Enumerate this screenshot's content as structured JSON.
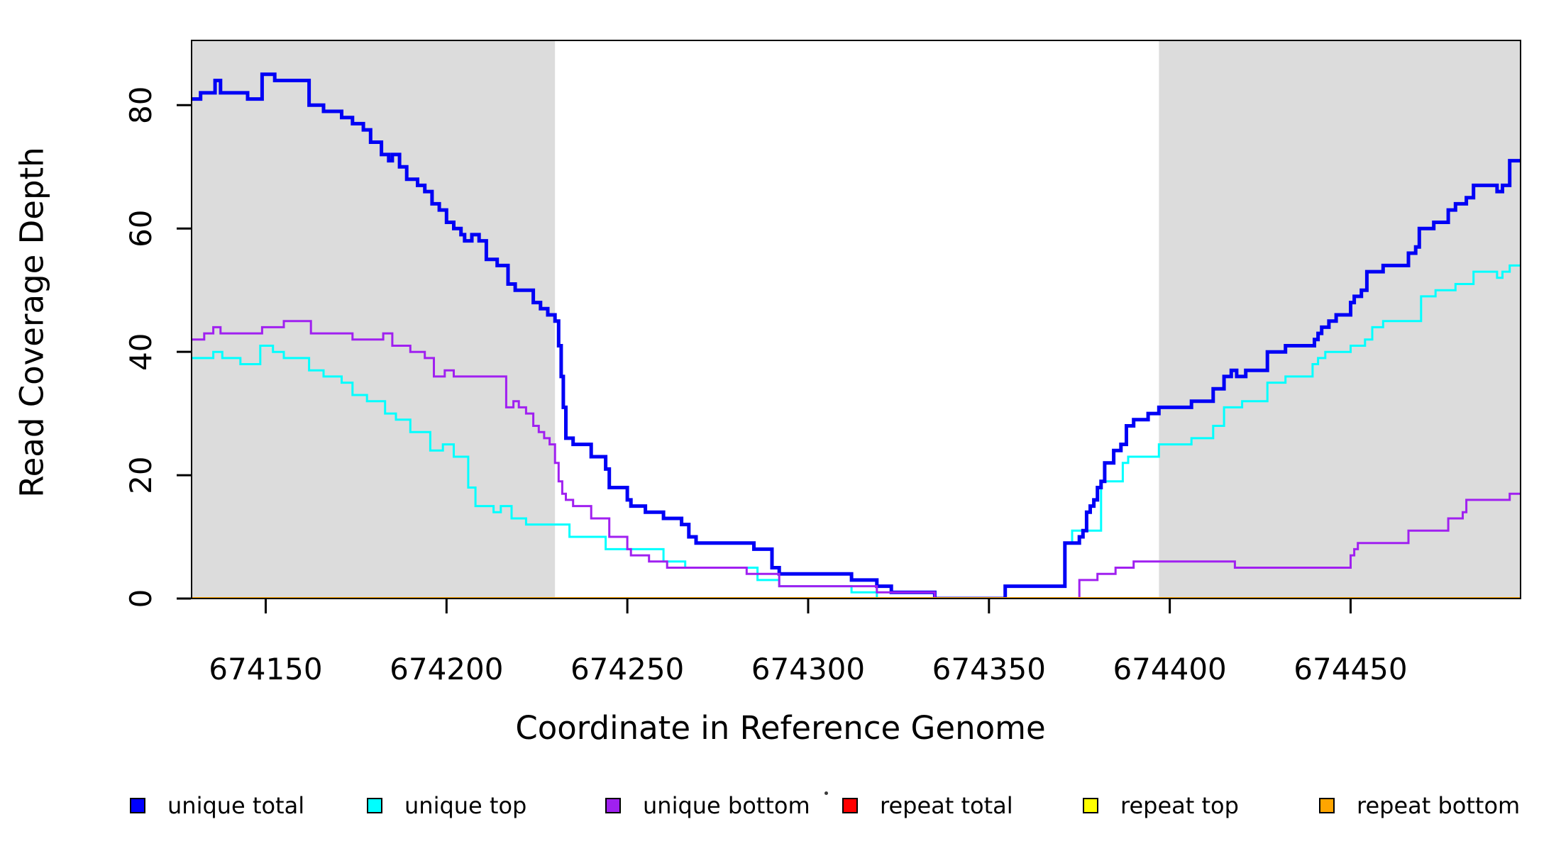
{
  "figure": {
    "background": "#FFFFFF",
    "shade_color": "#DCDCDC",
    "box_color": "#000000",
    "tick_color": "#000000",
    "artifact_dot": "·"
  },
  "chart_data": {
    "type": "line",
    "subtype": "step-after",
    "title": "",
    "xlabel": "Coordinate in Reference Genome",
    "ylabel": "Read Coverage Depth",
    "xlim": [
      674129.5,
      674497
    ],
    "ylim": [
      0,
      90.5
    ],
    "x_ticks": [
      674150,
      674200,
      674250,
      674300,
      674350,
      674400,
      674450
    ],
    "y_ticks": [
      0,
      20,
      40,
      60,
      80
    ],
    "grid": false,
    "legend_position": "bottom",
    "shaded_regions": [
      [
        674129.5,
        674230
      ],
      [
        674397,
        674497
      ]
    ],
    "series": [
      {
        "name": "repeat total",
        "color": "#FF0000",
        "width": 3,
        "points": [
          [
            674129.5,
            0
          ]
        ]
      },
      {
        "name": "repeat top",
        "color": "#FFFF00",
        "width": 3,
        "points": [
          [
            674129.5,
            0
          ]
        ]
      },
      {
        "name": "unique top",
        "color": "#00FFFF",
        "width": 3,
        "points": [
          [
            674129.5,
            39
          ],
          [
            674135.5,
            40
          ],
          [
            674138,
            39
          ],
          [
            674143,
            38
          ],
          [
            674148.5,
            41
          ],
          [
            674152,
            40
          ],
          [
            674155,
            39
          ],
          [
            674162,
            37
          ],
          [
            674166,
            36
          ],
          [
            674171,
            35
          ],
          [
            674174,
            33
          ],
          [
            674178,
            32
          ],
          [
            674183,
            30
          ],
          [
            674186,
            29
          ],
          [
            674190,
            27
          ],
          [
            674195.5,
            24
          ],
          [
            674199,
            25
          ],
          [
            674202,
            23
          ],
          [
            674206,
            18
          ],
          [
            674208,
            15
          ],
          [
            674213,
            14
          ],
          [
            674215,
            15
          ],
          [
            674218,
            13
          ],
          [
            674222,
            12
          ],
          [
            674234,
            10
          ],
          [
            674244,
            8
          ],
          [
            674260,
            6
          ],
          [
            674266,
            5
          ],
          [
            674286,
            3
          ],
          [
            674292,
            2
          ],
          [
            674312,
            1
          ],
          [
            674319,
            0
          ],
          [
            674354.5,
            2
          ],
          [
            674371,
            9
          ],
          [
            674373,
            11
          ],
          [
            674381,
            19
          ],
          [
            674387,
            22
          ],
          [
            674388.5,
            23
          ],
          [
            674397,
            25
          ],
          [
            674406,
            26
          ],
          [
            674412,
            28
          ],
          [
            674415,
            31
          ],
          [
            674420,
            32
          ],
          [
            674427,
            35
          ],
          [
            674432,
            36
          ],
          [
            674439.5,
            38
          ],
          [
            674441,
            39
          ],
          [
            674443,
            40
          ],
          [
            674450,
            41
          ],
          [
            674454,
            42
          ],
          [
            674456,
            44
          ],
          [
            674459,
            45
          ],
          [
            674469.5,
            49
          ],
          [
            674473.5,
            50
          ],
          [
            674479,
            51
          ],
          [
            674484,
            53
          ],
          [
            674490.5,
            52
          ],
          [
            674492,
            53
          ],
          [
            674494,
            54
          ]
        ]
      },
      {
        "name": "unique total",
        "color": "#0000F5",
        "width": 5,
        "points": [
          [
            674129.5,
            81
          ],
          [
            674132,
            82
          ],
          [
            674136,
            84
          ],
          [
            674137.5,
            82
          ],
          [
            674145,
            81
          ],
          [
            674149,
            85
          ],
          [
            674152.5,
            84
          ],
          [
            674162,
            80
          ],
          [
            674166,
            79
          ],
          [
            674171,
            78
          ],
          [
            674174,
            77
          ],
          [
            674177,
            76
          ],
          [
            674179,
            74
          ],
          [
            674182,
            72
          ],
          [
            674184,
            71
          ],
          [
            674185,
            72
          ],
          [
            674187,
            70
          ],
          [
            674189,
            68
          ],
          [
            674192,
            67
          ],
          [
            674194,
            66
          ],
          [
            674196,
            64
          ],
          [
            674198,
            63
          ],
          [
            674200,
            61
          ],
          [
            674202,
            60
          ],
          [
            674204,
            59
          ],
          [
            674205,
            58
          ],
          [
            674207,
            59
          ],
          [
            674209,
            58
          ],
          [
            674211,
            55
          ],
          [
            674214,
            54
          ],
          [
            674217,
            51
          ],
          [
            674219,
            50
          ],
          [
            674224,
            48
          ],
          [
            674226,
            47
          ],
          [
            674228,
            46
          ],
          [
            674230,
            45
          ],
          [
            674231,
            41
          ],
          [
            674231.7,
            36
          ],
          [
            674232.3,
            31
          ],
          [
            674233,
            26
          ],
          [
            674235,
            25
          ],
          [
            674240,
            23
          ],
          [
            674244,
            21
          ],
          [
            674245,
            18
          ],
          [
            674250,
            16
          ],
          [
            674251,
            15
          ],
          [
            674255,
            14
          ],
          [
            674260,
            13
          ],
          [
            674265,
            12
          ],
          [
            674267,
            10
          ],
          [
            674269,
            9
          ],
          [
            674285,
            8
          ],
          [
            674290,
            5
          ],
          [
            674292,
            4
          ],
          [
            674312,
            3
          ],
          [
            674319,
            2
          ],
          [
            674323,
            1
          ],
          [
            674335,
            0
          ],
          [
            674354.5,
            2
          ],
          [
            674371,
            9
          ],
          [
            674375,
            10
          ],
          [
            674376,
            11
          ],
          [
            674377,
            14
          ],
          [
            674378,
            15
          ],
          [
            674379,
            16
          ],
          [
            674380,
            18
          ],
          [
            674381,
            19
          ],
          [
            674382,
            22
          ],
          [
            674384.5,
            24
          ],
          [
            674386.5,
            25
          ],
          [
            674388,
            28
          ],
          [
            674390,
            29
          ],
          [
            674394,
            30
          ],
          [
            674397,
            31
          ],
          [
            674406,
            32
          ],
          [
            674412,
            34
          ],
          [
            674415,
            36
          ],
          [
            674417,
            37
          ],
          [
            674418.5,
            36
          ],
          [
            674421,
            37
          ],
          [
            674427,
            40
          ],
          [
            674432,
            41
          ],
          [
            674440,
            42
          ],
          [
            674441,
            43
          ],
          [
            674442,
            44
          ],
          [
            674444,
            45
          ],
          [
            674446,
            46
          ],
          [
            674450,
            48
          ],
          [
            674451,
            49
          ],
          [
            674453,
            50
          ],
          [
            674454.5,
            53
          ],
          [
            674459,
            54
          ],
          [
            674466,
            56
          ],
          [
            674468,
            57
          ],
          [
            674469,
            60
          ],
          [
            674473,
            61
          ],
          [
            674477,
            63
          ],
          [
            674479,
            64
          ],
          [
            674482,
            65
          ],
          [
            674484,
            67
          ],
          [
            674490.5,
            66
          ],
          [
            674492,
            67
          ],
          [
            674494,
            71
          ]
        ]
      },
      {
        "name": "unique bottom",
        "color": "#A020F0",
        "width": 3,
        "points": [
          [
            674129.5,
            42
          ],
          [
            674133,
            43
          ],
          [
            674135.5,
            44
          ],
          [
            674137.5,
            43
          ],
          [
            674149,
            44
          ],
          [
            674155,
            45
          ],
          [
            674162.5,
            43
          ],
          [
            674174,
            42
          ],
          [
            674182.5,
            43
          ],
          [
            674185,
            41
          ],
          [
            674190,
            40
          ],
          [
            674194,
            39
          ],
          [
            674196.5,
            36
          ],
          [
            674199.5,
            37
          ],
          [
            674202,
            36
          ],
          [
            674216.5,
            31
          ],
          [
            674218.5,
            32
          ],
          [
            674220,
            31
          ],
          [
            674222,
            30
          ],
          [
            674224,
            28
          ],
          [
            674225.5,
            27
          ],
          [
            674227,
            26
          ],
          [
            674228.5,
            25
          ],
          [
            674230,
            22
          ],
          [
            674231,
            19
          ],
          [
            674232,
            17
          ],
          [
            674233,
            16
          ],
          [
            674235,
            15
          ],
          [
            674240,
            13
          ],
          [
            674245,
            10
          ],
          [
            674250,
            8
          ],
          [
            674251,
            7
          ],
          [
            674256,
            6
          ],
          [
            674261,
            5
          ],
          [
            674283,
            4
          ],
          [
            674292,
            2
          ],
          [
            674319,
            1
          ],
          [
            674335,
            0
          ],
          [
            674375,
            3
          ],
          [
            674380,
            4
          ],
          [
            674385,
            5
          ],
          [
            674390,
            6
          ],
          [
            674418,
            5
          ],
          [
            674450,
            7
          ],
          [
            674451,
            8
          ],
          [
            674452,
            9
          ],
          [
            674466,
            11
          ],
          [
            674477,
            13
          ],
          [
            674481,
            14
          ],
          [
            674482,
            16
          ],
          [
            674494,
            17
          ]
        ]
      },
      {
        "name": "repeat bottom",
        "color": "#FFA500",
        "width": 4,
        "points": [
          [
            674129.5,
            0
          ]
        ]
      }
    ],
    "legend": [
      {
        "label": "unique total",
        "color": "#0000FF"
      },
      {
        "label": "unique top",
        "color": "#00FFFF"
      },
      {
        "label": "unique bottom",
        "color": "#A020F0"
      },
      {
        "label": "repeat total",
        "color": "#FF0000"
      },
      {
        "label": "repeat top",
        "color": "#FFFF00"
      },
      {
        "label": "repeat bottom",
        "color": "#FFA500"
      }
    ],
    "legend_x_positions": [
      183,
      517,
      853,
      1187,
      1526,
      1859
    ]
  }
}
